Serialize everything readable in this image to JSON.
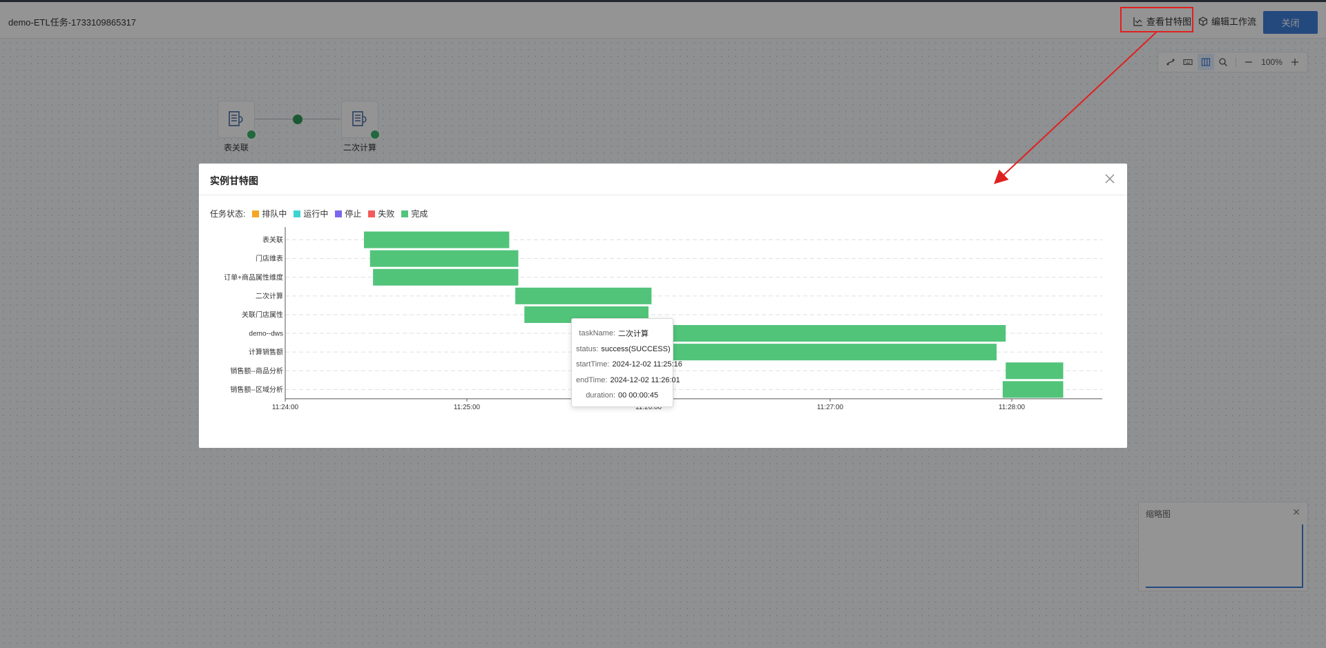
{
  "topbar": {
    "title": "demo-ETL任务-1733109865317",
    "gantt_label": "查看甘特图",
    "edit_label": "编辑工作流",
    "close_label": "关闭"
  },
  "zoom": {
    "value": "100%"
  },
  "nodes": [
    {
      "label": "表关联"
    },
    {
      "label": "二次计算"
    }
  ],
  "minimap": {
    "title": "缩略图"
  },
  "modal": {
    "title": "实例甘特图",
    "legend_title": "任务状态:",
    "legend": [
      {
        "label": "排队中",
        "color": "#f5a623"
      },
      {
        "label": "运行中",
        "color": "#3ed3d3"
      },
      {
        "label": "停止",
        "color": "#7b68ee"
      },
      {
        "label": "失败",
        "color": "#f25b5b"
      },
      {
        "label": "完成",
        "color": "#52c47a"
      }
    ]
  },
  "chart_data": {
    "type": "bar",
    "orientation": "gantt",
    "title": "",
    "xlabel": "",
    "ylabel": "",
    "grid": true,
    "color": "#52c47a",
    "x_ticks": [
      "11:24:00",
      "11:25:00",
      "11:26:00",
      "11:27:00",
      "11:28:00"
    ],
    "xlim": [
      "11:24:00",
      "11:28:30"
    ],
    "categories": [
      "表关联",
      "门店维表",
      "订单+商品属性维度",
      "二次计算",
      "关联门店属性",
      "demo--dws",
      "计算销售额",
      "销售额--商品分析",
      "销售额--区域分析"
    ],
    "tasks": [
      {
        "name": "表关联",
        "start": "11:24:26",
        "end": "11:25:14"
      },
      {
        "name": "门店维表",
        "start": "11:24:28",
        "end": "11:25:17"
      },
      {
        "name": "订单+商品属性维度",
        "start": "11:24:29",
        "end": "11:25:17"
      },
      {
        "name": "二次计算",
        "start": "11:25:16",
        "end": "11:26:01"
      },
      {
        "name": "关联门店属性",
        "start": "11:25:19",
        "end": "11:26:00"
      },
      {
        "name": "demo--dws",
        "start": "11:25:50",
        "end": "11:27:58"
      },
      {
        "name": "计算销售额",
        "start": "11:25:50",
        "end": "11:27:55"
      },
      {
        "name": "销售额--商品分析",
        "start": "11:27:58",
        "end": "11:28:17"
      },
      {
        "name": "销售额--区域分析",
        "start": "11:27:57",
        "end": "11:28:17"
      }
    ]
  },
  "tooltip": {
    "rows": [
      {
        "key": "taskName:",
        "value": "二次计算"
      },
      {
        "key": "status:",
        "value": "success(SUCCESS)"
      },
      {
        "key": "startTime:",
        "value": "2024-12-02 11:25:16"
      },
      {
        "key": "endTime:",
        "value": "2024-12-02 11:26:01"
      },
      {
        "key": "duration:",
        "value": "00 00:00:45"
      }
    ]
  }
}
